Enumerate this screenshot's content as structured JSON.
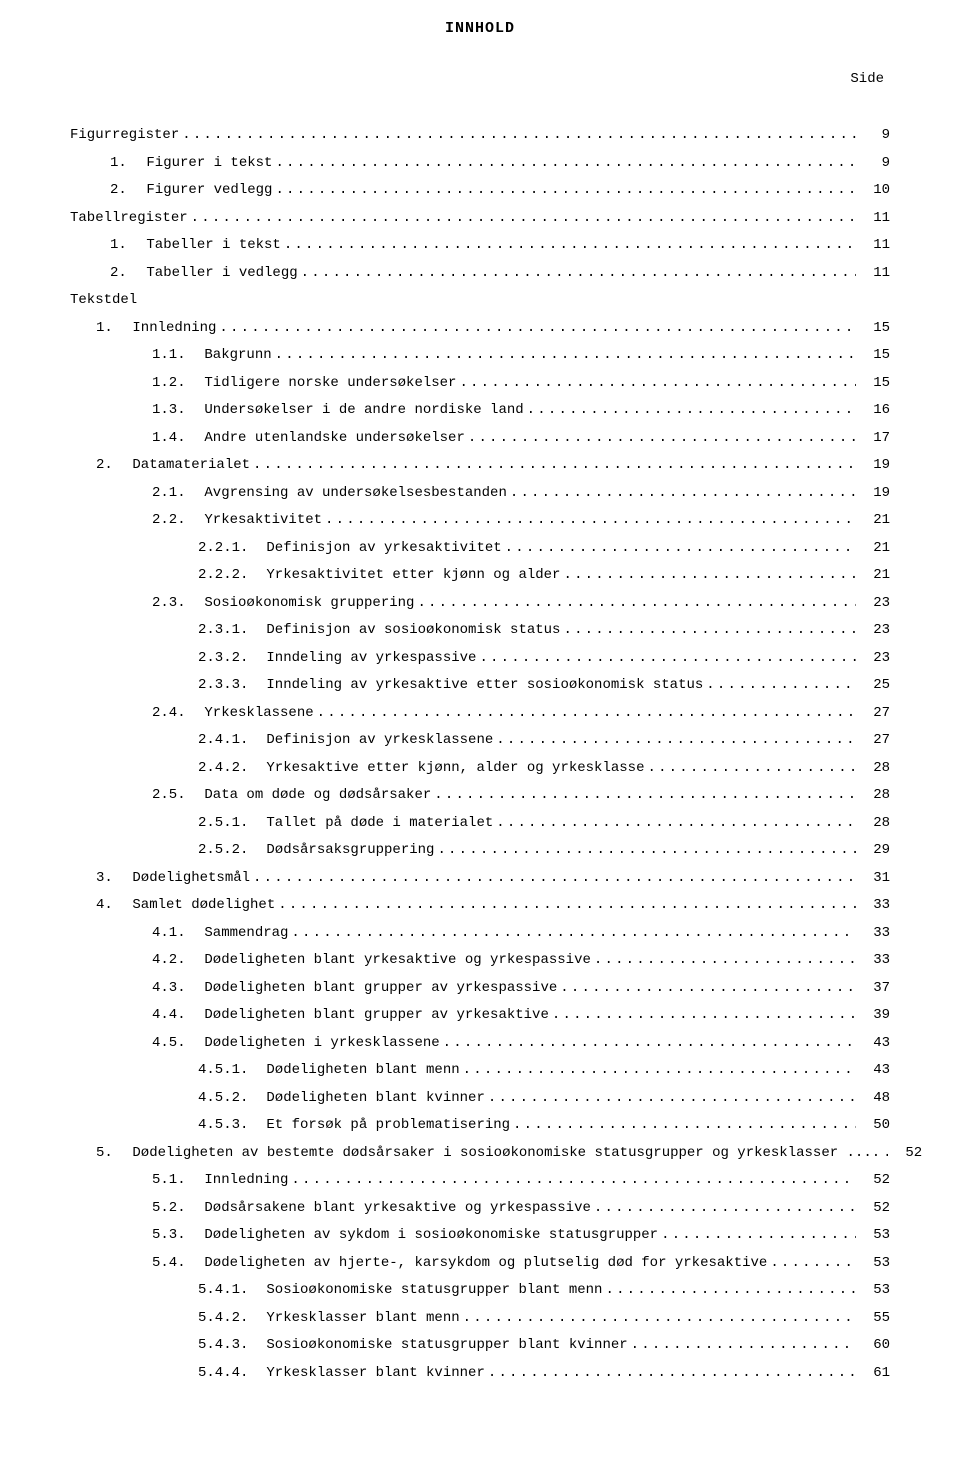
{
  "title": "INNHOLD",
  "side_label": "Side",
  "entries": [
    {
      "level": "l0",
      "number": "",
      "text": "Figurregister",
      "page": "9"
    },
    {
      "level": "l1",
      "number": "1.",
      "text": "Figurer i tekst",
      "page": "9"
    },
    {
      "level": "l1",
      "number": "2.",
      "text": "Figurer vedlegg",
      "page": "10"
    },
    {
      "level": "l0",
      "number": "",
      "text": "Tabellregister",
      "page": "11"
    },
    {
      "level": "l1",
      "number": "1.",
      "text": "Tabeller i tekst",
      "page": "11"
    },
    {
      "level": "l1",
      "number": "2.",
      "text": "Tabeller i vedlegg",
      "page": "11"
    },
    {
      "level": "l0",
      "number": "",
      "text": "Tekstdel",
      "page": ""
    },
    {
      "level": "l2",
      "number": "1.",
      "text": "Innledning",
      "page": "15"
    },
    {
      "level": "l3",
      "number": "1.1.",
      "text": "Bakgrunn",
      "page": "15"
    },
    {
      "level": "l3",
      "number": "1.2.",
      "text": "Tidligere norske undersøkelser",
      "page": "15"
    },
    {
      "level": "l3",
      "number": "1.3.",
      "text": "Undersøkelser i de andre nordiske land",
      "page": "16"
    },
    {
      "level": "l3",
      "number": "1.4.",
      "text": "Andre utenlandske undersøkelser",
      "page": "17"
    },
    {
      "level": "l2",
      "number": "2.",
      "text": "Datamaterialet",
      "page": "19"
    },
    {
      "level": "l3",
      "number": "2.1.",
      "text": "Avgrensing av undersøkelsesbestanden",
      "page": "19"
    },
    {
      "level": "l3",
      "number": "2.2.",
      "text": "Yrkesaktivitet",
      "page": "21"
    },
    {
      "level": "l4",
      "number": "2.2.1.",
      "text": "Definisjon av yrkesaktivitet",
      "page": "21"
    },
    {
      "level": "l4",
      "number": "2.2.2.",
      "text": "Yrkesaktivitet etter kjønn og alder",
      "page": "21"
    },
    {
      "level": "l3",
      "number": "2.3.",
      "text": "Sosioøkonomisk gruppering",
      "page": "23"
    },
    {
      "level": "l4",
      "number": "2.3.1.",
      "text": "Definisjon av sosioøkonomisk status",
      "page": "23"
    },
    {
      "level": "l4",
      "number": "2.3.2.",
      "text": "Inndeling av yrkespassive",
      "page": "23"
    },
    {
      "level": "l4",
      "number": "2.3.3.",
      "text": "Inndeling av yrkesaktive etter sosioøkonomisk status",
      "page": "25"
    },
    {
      "level": "l3",
      "number": "2.4.",
      "text": "Yrkesklassene",
      "page": "27"
    },
    {
      "level": "l4",
      "number": "2.4.1.",
      "text": "Definisjon av yrkesklassene",
      "page": "27"
    },
    {
      "level": "l4",
      "number": "2.4.2.",
      "text": "Yrkesaktive etter kjønn, alder og yrkesklasse",
      "page": "28"
    },
    {
      "level": "l3",
      "number": "2.5.",
      "text": "Data om døde og dødsårsaker",
      "page": "28"
    },
    {
      "level": "l4",
      "number": "2.5.1.",
      "text": "Tallet på døde i materialet",
      "page": "28"
    },
    {
      "level": "l4",
      "number": "2.5.2.",
      "text": "Dødsårsaksgruppering",
      "page": "29"
    },
    {
      "level": "l2",
      "number": "3.",
      "text": "Dødelighetsmål",
      "page": "31"
    },
    {
      "level": "l2",
      "number": "4.",
      "text": "Samlet dødelighet",
      "page": "33"
    },
    {
      "level": "l3",
      "number": "4.1.",
      "text": "Sammendrag",
      "page": "33"
    },
    {
      "level": "l3",
      "number": "4.2.",
      "text": "Dødeligheten blant yrkesaktive og yrkespassive",
      "page": "33"
    },
    {
      "level": "l3",
      "number": "4.3.",
      "text": "Dødeligheten blant grupper av yrkespassive",
      "page": "37"
    },
    {
      "level": "l3",
      "number": "4.4.",
      "text": "Dødeligheten blant grupper av yrkesaktive",
      "page": "39"
    },
    {
      "level": "l3",
      "number": "4.5.",
      "text": "Dødeligheten i yrkesklassene",
      "page": "43"
    },
    {
      "level": "l4",
      "number": "4.5.1.",
      "text": "Dødeligheten blant menn",
      "page": "43"
    },
    {
      "level": "l4",
      "number": "4.5.2.",
      "text": "Dødeligheten blant kvinner",
      "page": "48"
    },
    {
      "level": "l4",
      "number": "4.5.3.",
      "text": "Et forsøk på problematisering",
      "page": "50"
    },
    {
      "level": "l2",
      "number": "5.",
      "text": "Dødeligheten av bestemte dødsårsaker i sosioøkonomiske statusgrupper og yrkesklasser",
      "page": "52",
      "tight": true
    },
    {
      "level": "l3",
      "number": "5.1.",
      "text": "Innledning",
      "page": "52"
    },
    {
      "level": "l3",
      "number": "5.2.",
      "text": "Dødsårsakene blant yrkesaktive og yrkespassive",
      "page": "52"
    },
    {
      "level": "l3",
      "number": "5.3.",
      "text": "Dødeligheten av sykdom i sosioøkonomiske statusgrupper",
      "page": "53"
    },
    {
      "level": "l3",
      "number": "5.4.",
      "text": "Dødeligheten av hjerte-, karsykdom og plutselig død for yrkesaktive",
      "page": "53"
    },
    {
      "level": "l4",
      "number": "5.4.1.",
      "text": "Sosioøkonomiske statusgrupper blant menn",
      "page": "53"
    },
    {
      "level": "l4",
      "number": "5.4.2.",
      "text": "Yrkesklasser blant menn",
      "page": "55"
    },
    {
      "level": "l4",
      "number": "5.4.3.",
      "text": "Sosioøkonomiske statusgrupper blant kvinner",
      "page": "60"
    },
    {
      "level": "l4",
      "number": "5.4.4.",
      "text": "Yrkesklasser blant kvinner",
      "page": "61"
    }
  ]
}
